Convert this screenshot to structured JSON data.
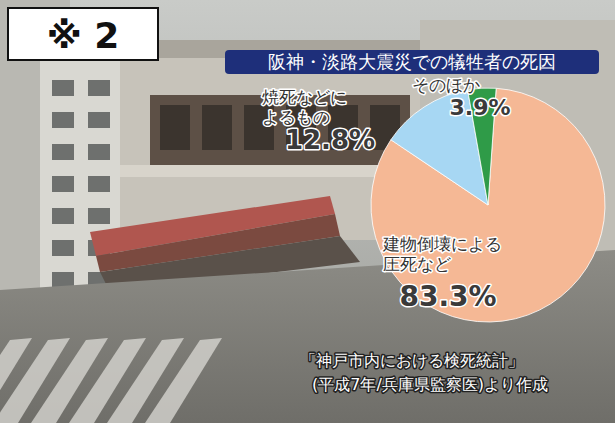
{
  "chart_data": {
    "type": "pie",
    "title": "阪神・淡路大震災での犠牲者の死因",
    "categories": [
      "建物倒壊による圧死など",
      "焼死などによるもの",
      "そのほか"
    ],
    "values": [
      83.3,
      12.8,
      3.9
    ],
    "value_labels": [
      "83.3%",
      "12.8%",
      "3.9%"
    ],
    "colors": [
      "#f5b895",
      "#a7d7f3",
      "#2f9b48"
    ],
    "data_labels": true,
    "annotations": [
      "※ 2",
      "「神戸市内における検死統計」",
      "(平成7年/兵庫県監察医)より作成"
    ]
  }
}
